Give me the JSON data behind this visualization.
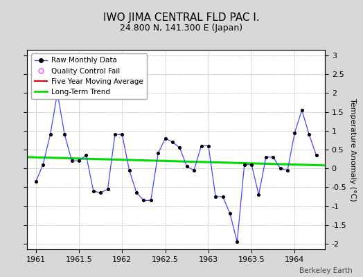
{
  "title": "IWO JIMA CENTRAL FLD PAC I.",
  "subtitle": "24.800 N, 141.300 E (Japan)",
  "attribution": "Berkeley Earth",
  "ylabel": "Temperature Anomaly (°C)",
  "xlim": [
    1960.9,
    1964.35
  ],
  "ylim": [
    -2.15,
    3.15
  ],
  "yticks": [
    -2,
    -1.5,
    -1,
    -0.5,
    0,
    0.5,
    1,
    1.5,
    2,
    2.5,
    3
  ],
  "xticks": [
    1961,
    1961.5,
    1962,
    1962.5,
    1963,
    1963.5,
    1964
  ],
  "xtick_labels": [
    "1961",
    "1961.5",
    "1962",
    "1962.5",
    "1963",
    "1963.5",
    "1964"
  ],
  "background_color": "#d8d8d8",
  "plot_bg_color": "#ffffff",
  "raw_data_x": [
    1961.0,
    1961.083,
    1961.167,
    1961.25,
    1961.333,
    1961.417,
    1961.5,
    1961.583,
    1961.667,
    1961.75,
    1961.833,
    1961.917,
    1962.0,
    1962.083,
    1962.167,
    1962.25,
    1962.333,
    1962.417,
    1962.5,
    1962.583,
    1962.667,
    1962.75,
    1962.833,
    1962.917,
    1963.0,
    1963.083,
    1963.167,
    1963.25,
    1963.333,
    1963.417,
    1963.5,
    1963.583,
    1963.667,
    1963.75,
    1963.833,
    1963.917,
    1964.0,
    1964.083,
    1964.167,
    1964.25
  ],
  "raw_data_y": [
    -0.35,
    0.1,
    0.9,
    2.0,
    0.9,
    0.2,
    0.2,
    0.35,
    -0.6,
    -0.65,
    -0.55,
    0.9,
    0.9,
    -0.05,
    -0.65,
    -0.85,
    -0.85,
    0.4,
    0.8,
    0.7,
    0.55,
    0.05,
    -0.05,
    0.6,
    0.6,
    -0.75,
    -0.75,
    -1.2,
    -1.95,
    0.1,
    0.1,
    -0.7,
    0.3,
    0.3,
    0.0,
    -0.05,
    0.95,
    1.55,
    0.9,
    0.35
  ],
  "trend_x": [
    1960.9,
    1964.35
  ],
  "trend_y": [
    0.3,
    0.08
  ],
  "raw_line_color": "#4444ff",
  "raw_marker_color": "#000000",
  "trend_color": "#00dd00",
  "moving_avg_color": "#dd0000",
  "qc_fail_color": "#ff44ff",
  "title_fontsize": 11,
  "subtitle_fontsize": 9,
  "label_fontsize": 8,
  "tick_fontsize": 8
}
